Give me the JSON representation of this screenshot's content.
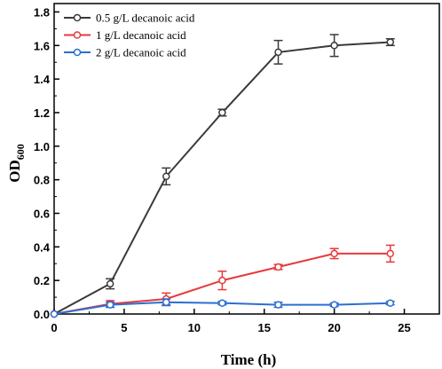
{
  "chart_data": {
    "type": "line",
    "xlabel": "Time (h)",
    "ylabel_main": "OD",
    "ylabel_sub": "600",
    "xlim": [
      0,
      27.5
    ],
    "ylim": [
      0,
      1.85
    ],
    "x_ticks": [
      "0",
      "5",
      "10",
      "15",
      "20",
      "25"
    ],
    "y_ticks": [
      "0.0",
      "0.2",
      "0.4",
      "0.6",
      "0.8",
      "1.0",
      "1.2",
      "1.4",
      "1.6",
      "1.8"
    ],
    "grid": false,
    "legend_position": "top-left",
    "series": [
      {
        "name": "0.5 g/L decanoic acid",
        "color": "#3a3a3a",
        "x": [
          0,
          4,
          8,
          12,
          16,
          20,
          24
        ],
        "y": [
          0,
          0.18,
          0.82,
          1.2,
          1.56,
          1.6,
          1.62
        ],
        "err": [
          0,
          0.03,
          0.05,
          0.02,
          0.07,
          0.065,
          0.02
        ]
      },
      {
        "name": "1 g/L decanoic acid",
        "color": "#e8393a",
        "x": [
          0,
          4,
          8,
          12,
          16,
          20,
          24
        ],
        "y": [
          0,
          0.06,
          0.09,
          0.2,
          0.28,
          0.36,
          0.36
        ],
        "err": [
          0,
          0.02,
          0.035,
          0.055,
          0.015,
          0.03,
          0.05
        ]
      },
      {
        "name": "2 g/L decanoic acid",
        "color": "#2b6fd1",
        "x": [
          0,
          4,
          8,
          12,
          16,
          20,
          24
        ],
        "y": [
          0,
          0.055,
          0.07,
          0.065,
          0.055,
          0.055,
          0.065
        ],
        "err": [
          0,
          0.015,
          0.02,
          0.01,
          0.015,
          0.01,
          0.01
        ]
      }
    ]
  }
}
